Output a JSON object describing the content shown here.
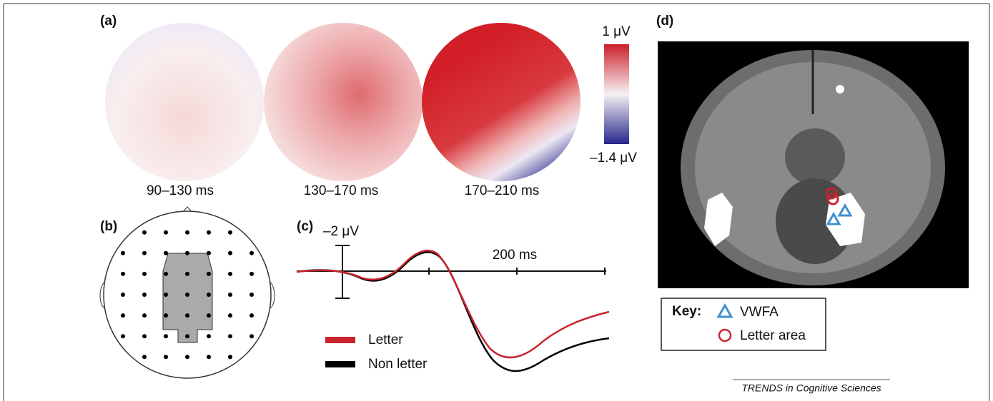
{
  "panels": {
    "a": {
      "label": "(a)",
      "colorbar_max": "1 μV",
      "colorbar_min": "–1.4 μV",
      "windows": [
        "90–130 ms",
        "130–170 ms",
        "170–210 ms"
      ]
    },
    "b": {
      "label": "(b)"
    },
    "c": {
      "label": "(c)",
      "scale_label": "–2 μV",
      "time_label": "200 ms",
      "legend": [
        "Letter",
        "Non letter"
      ]
    },
    "d": {
      "label": "(d)",
      "key_title": "Key:",
      "key": [
        "VWFA",
        "Letter area"
      ]
    }
  },
  "footer": "TRENDS in Cognitive Sciences"
}
